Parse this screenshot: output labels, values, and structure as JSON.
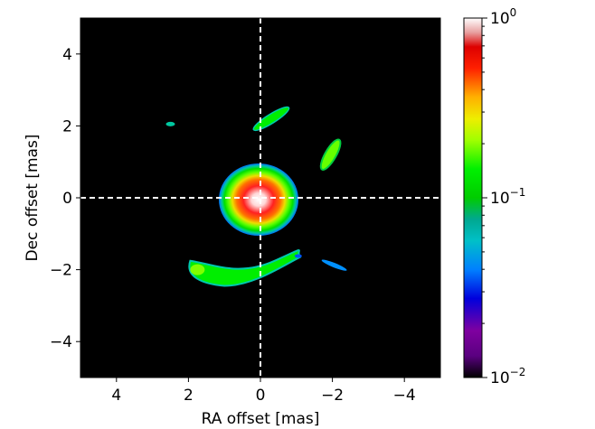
{
  "chart_data": {
    "type": "heatmap",
    "title": "",
    "xlabel": "RA offset [mas]",
    "ylabel": "Dec offset [mas]",
    "xlim": [
      5,
      -5
    ],
    "ylim": [
      -5,
      5
    ],
    "x_direction": "inverted (RA increases to the left)",
    "xticks": [
      4,
      2,
      0,
      -2,
      -4
    ],
    "yticks": [
      4,
      2,
      0,
      -2,
      -4
    ],
    "xtick_labels": [
      "4",
      "2",
      "0",
      "−2",
      "−4"
    ],
    "ytick_labels": [
      "4",
      "2",
      "0",
      "−2",
      "−4"
    ],
    "background_value": "below 10^-2 (black)",
    "crosshair": {
      "x": 0,
      "y": 0,
      "style": "white dashed lines"
    },
    "colorbar": {
      "scale": "log",
      "colormap": "nipy_spectral-like",
      "range": [
        0.01,
        1
      ],
      "ticks": [
        {
          "value": 1,
          "base": "10",
          "exp": "0"
        },
        {
          "value": 0.1,
          "base": "10",
          "exp": "−1"
        },
        {
          "value": 0.01,
          "base": "10",
          "exp": "−2"
        }
      ],
      "placement": "right"
    },
    "features": [
      {
        "name": "central core",
        "x": 0.05,
        "y": -0.05,
        "peak": 1.0,
        "extent_mas": 1.1
      },
      {
        "name": "upper arc",
        "x_range": [
          0.2,
          -0.8
        ],
        "y_range": [
          1.9,
          2.5
        ],
        "value": 0.12
      },
      {
        "name": "upper-left knot",
        "x": 2.5,
        "y": 2.05,
        "value": 0.04
      },
      {
        "name": "right arc",
        "x_range": [
          -1.7,
          -2.2
        ],
        "y_range": [
          0.8,
          1.6
        ],
        "value": 0.15
      },
      {
        "name": "lower arc",
        "x_range": [
          2.0,
          -1.2
        ],
        "y_range": [
          -1.5,
          -2.4
        ],
        "value": 0.15
      },
      {
        "name": "lower-right knot",
        "x_range": [
          -1.7,
          -2.4
        ],
        "y_range": [
          -1.7,
          -2.05
        ],
        "value": 0.04
      }
    ],
    "grid": false
  }
}
